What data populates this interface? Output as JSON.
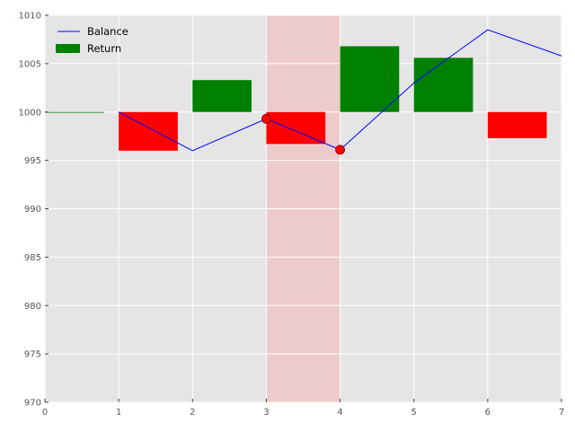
{
  "chart_data": {
    "type": "bar",
    "title": "",
    "xlabel": "",
    "ylabel": "",
    "xlim": [
      0,
      7
    ],
    "ylim": [
      970,
      1010
    ],
    "xticks": [
      0,
      1,
      2,
      3,
      4,
      5,
      6,
      7
    ],
    "yticks": [
      970,
      975,
      980,
      985,
      990,
      995,
      1000,
      1005,
      1010
    ],
    "grid": true,
    "legend_position": "top-left",
    "background_color": "#e5e5e5",
    "highlight_region": {
      "x_start": 3,
      "x_end": 4,
      "color": "#f3b9b9"
    },
    "series": [
      {
        "name": "Balance",
        "type": "line",
        "color": "#0000ff",
        "x": [
          1,
          2,
          3,
          4,
          5,
          6,
          7
        ],
        "y": [
          1000,
          996.0,
          999.3,
          996.1,
          1003.0,
          1008.5,
          1005.8
        ]
      },
      {
        "name": "Return",
        "type": "bar",
        "baseline": 1000,
        "positive_color": "#008000",
        "negative_color": "#ff0000",
        "bar_width": 0.8,
        "x": [
          0,
          1,
          2,
          3,
          4,
          5,
          6
        ],
        "values": [
          0,
          -4.0,
          3.3,
          -3.3,
          6.8,
          5.6,
          -2.7
        ]
      }
    ],
    "markers": [
      {
        "x": 3,
        "y": 999.3,
        "color": "#ff0000"
      },
      {
        "x": 4,
        "y": 996.1,
        "color": "#ff0000"
      }
    ],
    "legend": {
      "line_label": "Balance",
      "bar_label": "Return",
      "bar_color": "#008000",
      "line_color": "#0000ff"
    }
  }
}
